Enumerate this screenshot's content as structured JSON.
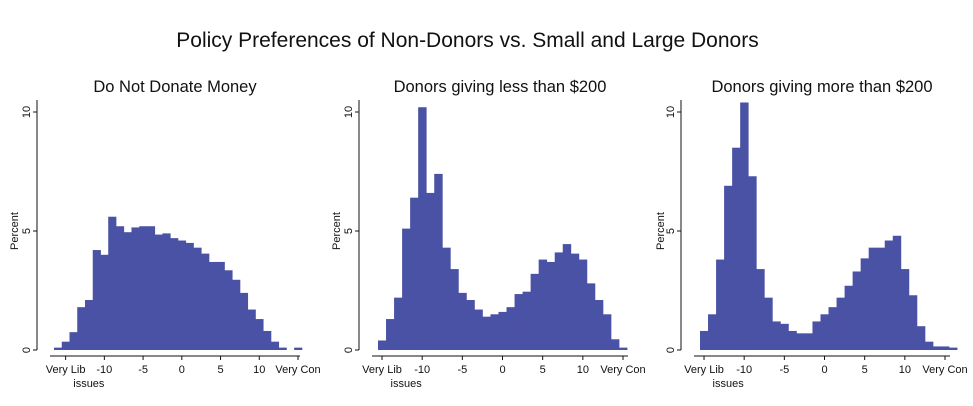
{
  "title": "Policy Preferences of Non-Donors vs. Small and Large Donors",
  "bar_color": "#4a52a5",
  "chart_data": [
    {
      "type": "bar",
      "title": "Do Not Donate Money",
      "xlabel": "issues",
      "ylabel": "Percent",
      "ylim": [
        0,
        10
      ],
      "yticks": [
        0,
        5,
        10
      ],
      "xticks": [
        {
          "value": -15,
          "label": "Very Lib"
        },
        {
          "value": -10,
          "label": "-10"
        },
        {
          "value": -5,
          "label": "-5"
        },
        {
          "value": 0,
          "label": "0"
        },
        {
          "value": 5,
          "label": "5"
        },
        {
          "value": 10,
          "label": "10"
        },
        {
          "value": 15,
          "label": "Very Con"
        }
      ],
      "bin_start": -16.5,
      "bin_width": 1,
      "values": [
        0.1,
        0.35,
        0.75,
        1.8,
        2.1,
        4.2,
        4.0,
        5.6,
        5.2,
        4.95,
        5.15,
        5.2,
        5.2,
        4.85,
        4.9,
        4.7,
        4.6,
        4.5,
        4.3,
        4.05,
        3.7,
        3.7,
        3.35,
        2.95,
        2.4,
        1.7,
        1.3,
        0.8,
        0.35,
        0.1,
        0.0,
        0.1
      ]
    },
    {
      "type": "bar",
      "title": "Donors giving less than $200",
      "xlabel": "issues",
      "ylabel": "Percent",
      "ylim": [
        0,
        10
      ],
      "yticks": [
        0,
        5,
        10
      ],
      "xticks": [
        {
          "value": -15,
          "label": "Very Lib"
        },
        {
          "value": -10,
          "label": "-10"
        },
        {
          "value": -5,
          "label": "-5"
        },
        {
          "value": 0,
          "label": "0"
        },
        {
          "value": 5,
          "label": "5"
        },
        {
          "value": 10,
          "label": "10"
        },
        {
          "value": 15,
          "label": "Very Con"
        }
      ],
      "bin_start": -15.5,
      "bin_width": 1,
      "values": [
        0.4,
        1.3,
        2.2,
        5.1,
        6.4,
        10.2,
        6.6,
        7.4,
        4.3,
        3.4,
        2.4,
        2.1,
        1.7,
        1.4,
        1.5,
        1.6,
        1.8,
        2.35,
        2.45,
        3.2,
        3.8,
        3.7,
        4.1,
        4.45,
        4.05,
        3.8,
        2.8,
        2.1,
        1.5,
        0.45,
        0.1
      ]
    },
    {
      "type": "bar",
      "title": "Donors giving more than $200",
      "xlabel": "issues",
      "ylabel": "Percent",
      "ylim": [
        0,
        10
      ],
      "yticks": [
        0,
        5,
        10
      ],
      "xticks": [
        {
          "value": -15,
          "label": "Very Lib"
        },
        {
          "value": -10,
          "label": "-10"
        },
        {
          "value": -5,
          "label": "-5"
        },
        {
          "value": 0,
          "label": "0"
        },
        {
          "value": 5,
          "label": "5"
        },
        {
          "value": 10,
          "label": "10"
        },
        {
          "value": 15,
          "label": "Very Con"
        }
      ],
      "bin_start": -15.5,
      "bin_width": 1,
      "values": [
        0.8,
        1.5,
        3.8,
        6.9,
        8.5,
        10.4,
        7.3,
        3.4,
        2.2,
        1.2,
        1.1,
        0.8,
        0.7,
        0.7,
        1.2,
        1.5,
        1.8,
        2.2,
        2.7,
        3.3,
        3.85,
        4.3,
        4.3,
        4.6,
        4.8,
        3.4,
        2.3,
        1.0,
        0.35,
        0.15,
        0.15,
        0.1
      ]
    }
  ]
}
